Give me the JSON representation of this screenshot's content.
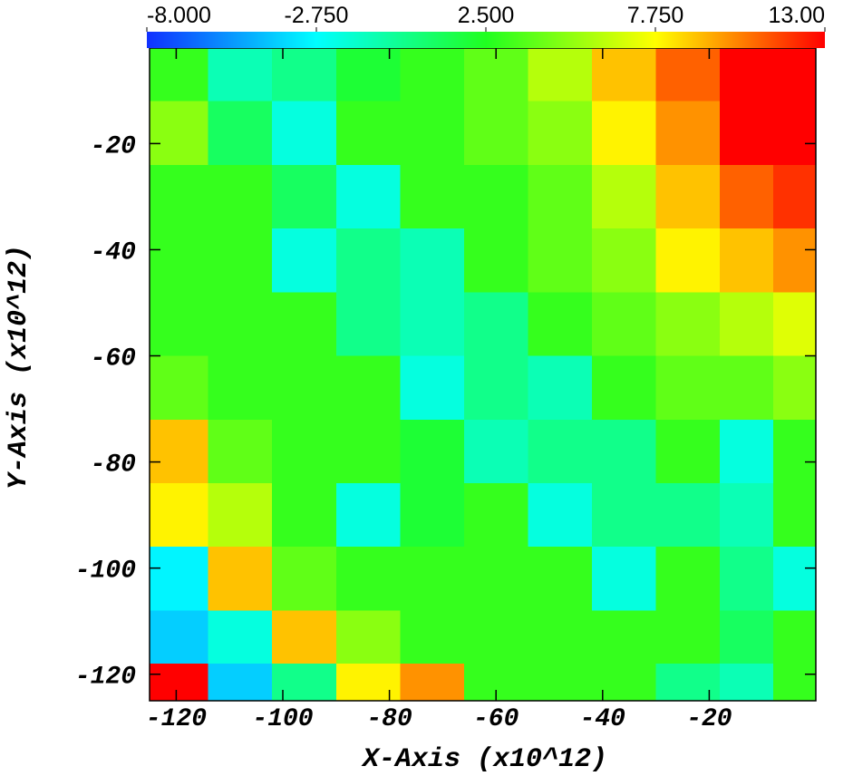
{
  "chart_data": {
    "type": "heatmap",
    "x_label": "X-Axis (x10^12)",
    "y_label": "Y-Axis (x10^12)",
    "x": [
      -120,
      -108,
      -96,
      -84,
      -72,
      -60,
      -48,
      -36,
      -24,
      -12,
      -4
    ],
    "y": [
      -6,
      -18,
      -30,
      -42,
      -54,
      -66,
      -78,
      -90,
      -102,
      -114,
      -122
    ],
    "z": [
      [
        3,
        -1,
        0,
        2,
        3,
        4,
        6,
        9,
        11,
        13,
        13
      ],
      [
        5,
        1,
        -2,
        3,
        3,
        4,
        5,
        8,
        10,
        13,
        13
      ],
      [
        3,
        3,
        1,
        -2,
        3,
        3,
        4,
        6,
        9,
        11,
        12
      ],
      [
        3,
        3,
        -2,
        0,
        -1,
        3,
        4,
        5,
        8,
        9,
        10
      ],
      [
        3,
        3,
        3,
        0,
        -1,
        0,
        3,
        4,
        5,
        6,
        7
      ],
      [
        4,
        3,
        3,
        3,
        -2,
        0,
        -1,
        3,
        4,
        4,
        5
      ],
      [
        9,
        4,
        3,
        3,
        2,
        -1,
        0,
        0,
        3,
        -2,
        3
      ],
      [
        8,
        6,
        3,
        -2,
        2,
        3,
        -2,
        0,
        0,
        -1,
        3
      ],
      [
        -3,
        9,
        4,
        3,
        3,
        3,
        3,
        -2,
        3,
        0,
        -2
      ],
      [
        -4,
        -2,
        9,
        5,
        3,
        3,
        3,
        3,
        3,
        1,
        3
      ],
      [
        13,
        -4,
        0,
        8,
        10,
        3,
        3,
        3,
        0,
        -1,
        3
      ]
    ],
    "xlim": [
      -125,
      0
    ],
    "ylim": [
      -125,
      -2
    ],
    "xticks": [
      -120,
      -100,
      -80,
      -60,
      -40,
      -20
    ],
    "yticks": [
      -20,
      -40,
      -60,
      -80,
      -100,
      -120
    ],
    "clim": [
      -8,
      13
    ],
    "colorbar_ticks": [
      {
        "value": -8,
        "label": "-8.000"
      },
      {
        "value": -2.75,
        "label": "-2.750"
      },
      {
        "value": 2.5,
        "label": "2.500"
      },
      {
        "value": 7.75,
        "label": "7.750"
      },
      {
        "value": 13,
        "label": "13.00"
      }
    ],
    "colormap": [
      "#1030ff",
      "#00ffff",
      "#20ff20",
      "#ffff00",
      "#ff0000"
    ]
  }
}
